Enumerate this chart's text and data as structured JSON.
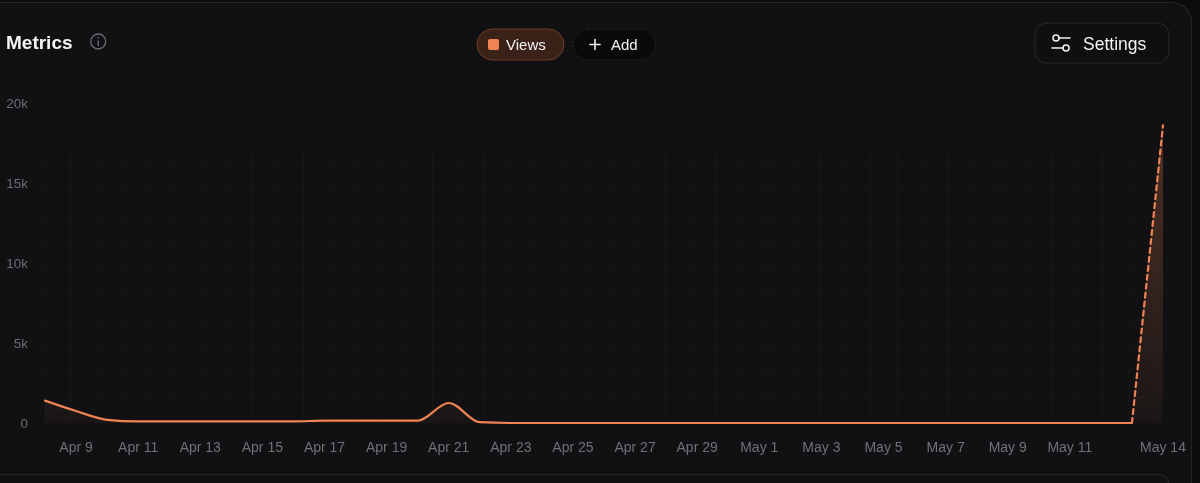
{
  "chart_data": {
    "type": "area",
    "title": "Metrics",
    "categories": [
      null,
      "Apr 9",
      null,
      "Apr 11",
      null,
      "Apr 13",
      null,
      "Apr 15",
      null,
      "Apr 17",
      null,
      "Apr 19",
      null,
      "Apr 21",
      null,
      "Apr 23",
      null,
      "Apr 25",
      null,
      "Apr 27",
      null,
      "Apr 29",
      null,
      "May 1",
      null,
      "May 3",
      null,
      "May 5",
      null,
      "May 7",
      null,
      "May 9",
      null,
      "May 11",
      null,
      null,
      "May 14"
    ],
    "series": [
      {
        "name": "Views",
        "color": "#ef8354",
        "values": [
          1400,
          750,
          200,
          100,
          100,
          100,
          100,
          100,
          100,
          150,
          150,
          150,
          150,
          1250,
          50,
          0,
          0,
          0,
          0,
          0,
          0,
          0,
          0,
          0,
          0,
          0,
          0,
          0,
          0,
          0,
          0,
          0,
          0,
          0,
          0,
          0,
          null
        ]
      },
      {
        "color": "#ef8354",
        "line_style": "dashed",
        "values": [
          null,
          null,
          null,
          null,
          null,
          null,
          null,
          null,
          null,
          null,
          null,
          null,
          null,
          null,
          null,
          null,
          null,
          null,
          null,
          null,
          null,
          null,
          null,
          null,
          null,
          null,
          null,
          null,
          null,
          null,
          null,
          null,
          null,
          null,
          null,
          0,
          18600
        ]
      }
    ],
    "ylim": [
      0,
      20000
    ],
    "yticks": [
      0,
      {
        "value": 5000,
        "label": "5k"
      },
      {
        "value": 10000,
        "label": "10k"
      },
      {
        "value": 15000,
        "label": "15k"
      },
      {
        "value": 20000,
        "label": "20k"
      }
    ],
    "legend": "top",
    "annotations": [
      "Add",
      "Settings"
    ]
  }
}
